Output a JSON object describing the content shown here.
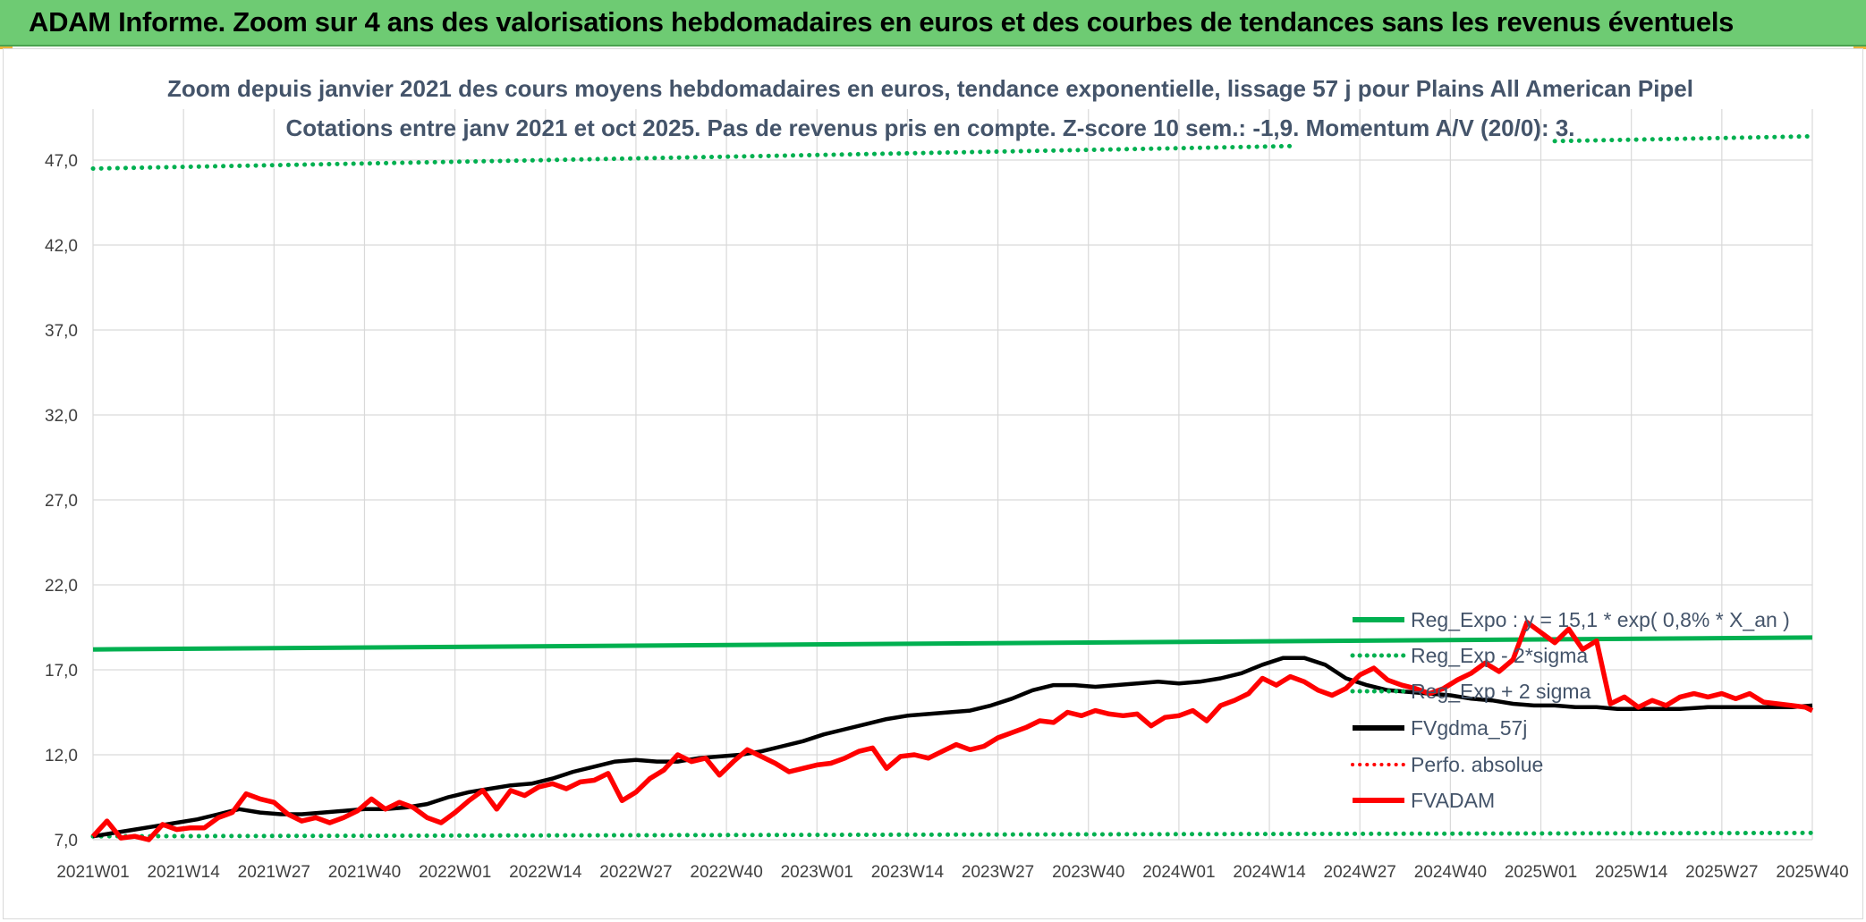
{
  "banner": {
    "title": "ADAM Informe. Zoom sur 4 ans des valorisations hebdomadaires en euros et des courbes de tendances sans les revenus éventuels"
  },
  "colors": {
    "banner_bg": "#6ecb73",
    "trend_green": "#00b050",
    "price_red": "#ff0000",
    "smooth_black": "#000000",
    "title_text": "#44546a"
  },
  "chart_data": {
    "type": "line",
    "title_line1": "Zoom depuis janvier 2021 des cours moyens hebdomadaires en euros, tendance exponentielle, lissage 57 j pour Plains All American Pipel",
    "title_line2": "Cotations entre janv 2021 et oct 2025. Pas de revenus pris en compte. Z-score 10 sem.: -1,9. Momentum A/V (20/0): 3.",
    "xlabel": "",
    "ylabel": "",
    "ylim": [
      7.0,
      50.0
    ],
    "y_ticks": [
      "7,0",
      "12,0",
      "17,0",
      "22,0",
      "27,0",
      "32,0",
      "37,0",
      "42,0",
      "47,0"
    ],
    "y_tick_values": [
      7,
      12,
      17,
      22,
      27,
      32,
      37,
      42,
      47
    ],
    "x_ticks": [
      "2021W01",
      "2021W14",
      "2021W27",
      "2021W40",
      "2022W01",
      "2022W14",
      "2022W27",
      "2022W40",
      "2023W01",
      "2023W14",
      "2023W27",
      "2023W40",
      "2024W01",
      "2024W14",
      "2024W27",
      "2024W40",
      "2025W01",
      "2025W14",
      "2025W27",
      "2025W40"
    ],
    "legend": [
      {
        "label": "Reg_Expo : y = 15,1 * exp( 0,8% *  X_an )",
        "style": "solid",
        "color": "#00b050"
      },
      {
        "label": "Reg_Exp - 2*sigma",
        "style": "dotted",
        "color": "#00b050"
      },
      {
        "label": "Reg_Exp + 2 sigma",
        "style": "dotted",
        "color": "#00b050"
      },
      {
        "label": "FVgdma_57j",
        "style": "solid",
        "color": "#000000"
      },
      {
        "label": "Perfo. absolue",
        "style": "dotted",
        "color": "#ff0000"
      },
      {
        "label": "FVADAM",
        "style": "solid",
        "color": "#ff0000"
      }
    ],
    "series": [
      {
        "name": "Reg_Expo",
        "start": 18.2,
        "end": 18.9
      },
      {
        "name": "Reg_Exp - 2*sigma",
        "start": 7.2,
        "end": 7.4
      },
      {
        "name": "Reg_Exp + 2 sigma",
        "start": 46.5,
        "end": 48.4
      },
      {
        "name": "FVgdma_57j",
        "x": [
          0,
          3,
          6,
          9,
          12,
          15,
          18,
          21,
          24,
          27,
          30,
          33,
          36,
          39,
          42,
          45,
          48,
          51,
          54,
          57,
          60,
          63,
          66,
          69,
          72,
          75,
          78,
          81,
          84,
          87,
          90,
          93,
          96,
          99,
          102,
          105,
          108,
          111,
          114,
          117,
          120,
          123,
          126,
          129,
          132,
          135,
          138,
          141,
          144,
          147,
          150,
          153,
          156,
          159,
          162,
          165,
          168,
          171,
          174,
          177,
          180,
          183,
          186,
          189,
          192,
          195,
          198,
          201,
          204,
          207,
          210,
          213,
          216,
          219,
          222,
          225,
          228,
          232,
          235,
          238,
          241,
          244,
          247
        ],
        "values": [
          7.2,
          7.4,
          7.6,
          7.8,
          8.0,
          8.2,
          8.5,
          8.8,
          8.6,
          8.5,
          8.5,
          8.6,
          8.7,
          8.8,
          8.8,
          8.9,
          9.1,
          9.5,
          9.8,
          10.0,
          10.2,
          10.3,
          10.6,
          11.0,
          11.3,
          11.6,
          11.7,
          11.6,
          11.6,
          11.8,
          11.9,
          12.0,
          12.2,
          12.5,
          12.8,
          13.2,
          13.5,
          13.8,
          14.1,
          14.3,
          14.4,
          14.5,
          14.6,
          14.9,
          15.3,
          15.8,
          16.1,
          16.1,
          16.0,
          16.1,
          16.2,
          16.3,
          16.2,
          16.3,
          16.5,
          16.8,
          17.3,
          17.7,
          17.7,
          17.3,
          16.5,
          16.1,
          15.8,
          15.7,
          15.6,
          15.5,
          15.3,
          15.2,
          15.0,
          14.9,
          14.9,
          14.8,
          14.8,
          14.7,
          14.7,
          14.7,
          14.7,
          14.8,
          14.8,
          14.8,
          14.8,
          14.8,
          14.9
        ]
      },
      {
        "name": "FVADAM",
        "x": [
          0,
          2,
          4,
          6,
          8,
          10,
          12,
          14,
          16,
          18,
          20,
          22,
          24,
          26,
          28,
          30,
          32,
          34,
          36,
          38,
          40,
          42,
          44,
          46,
          48,
          50,
          52,
          54,
          56,
          58,
          60,
          62,
          64,
          66,
          68,
          70,
          72,
          74,
          76,
          78,
          80,
          82,
          84,
          86,
          88,
          90,
          92,
          94,
          96,
          98,
          100,
          102,
          104,
          106,
          108,
          110,
          112,
          114,
          116,
          118,
          120,
          122,
          124,
          126,
          128,
          130,
          132,
          134,
          136,
          138,
          140,
          142,
          144,
          146,
          148,
          150,
          152,
          154,
          156,
          158,
          160,
          162,
          164,
          166,
          168,
          170,
          172,
          174,
          176,
          178,
          180,
          182,
          184,
          186,
          188,
          190,
          192,
          194,
          196,
          198,
          200,
          202,
          204,
          206,
          208,
          210,
          212,
          214,
          216,
          218,
          220,
          222,
          224,
          226,
          228,
          230,
          232,
          234,
          236,
          238,
          240,
          242,
          244,
          246,
          247
        ],
        "values": [
          7.2,
          8.1,
          7.1,
          7.2,
          7.0,
          7.9,
          7.6,
          7.7,
          7.7,
          8.3,
          8.6,
          9.7,
          9.4,
          9.2,
          8.5,
          8.1,
          8.3,
          8.0,
          8.3,
          8.7,
          9.4,
          8.8,
          9.2,
          8.9,
          8.3,
          8.0,
          8.6,
          9.3,
          9.9,
          8.8,
          9.9,
          9.6,
          10.1,
          10.3,
          10.0,
          10.4,
          10.5,
          10.9,
          9.3,
          9.8,
          10.6,
          11.1,
          12.0,
          11.6,
          11.8,
          10.8,
          11.6,
          12.3,
          11.9,
          11.5,
          11.0,
          11.2,
          11.4,
          11.5,
          11.8,
          12.2,
          12.4,
          11.2,
          11.9,
          12.0,
          11.8,
          12.2,
          12.6,
          12.3,
          12.5,
          13.0,
          13.3,
          13.6,
          14.0,
          13.9,
          14.5,
          14.3,
          14.6,
          14.4,
          14.3,
          14.4,
          13.7,
          14.2,
          14.3,
          14.6,
          14.0,
          14.9,
          15.2,
          15.6,
          16.5,
          16.1,
          16.6,
          16.3,
          15.8,
          15.5,
          15.9,
          16.7,
          17.1,
          16.4,
          16.1,
          15.9,
          15.6,
          15.9,
          16.4,
          16.8,
          17.4,
          16.9,
          17.6,
          19.8,
          19.2,
          18.6,
          19.4,
          18.2,
          18.7,
          15.0,
          15.4,
          14.8,
          15.2,
          14.9,
          15.4,
          15.6,
          15.4,
          15.6,
          15.3,
          15.6,
          15.1,
          15.0,
          14.9,
          14.8,
          14.6
        ]
      }
    ]
  }
}
